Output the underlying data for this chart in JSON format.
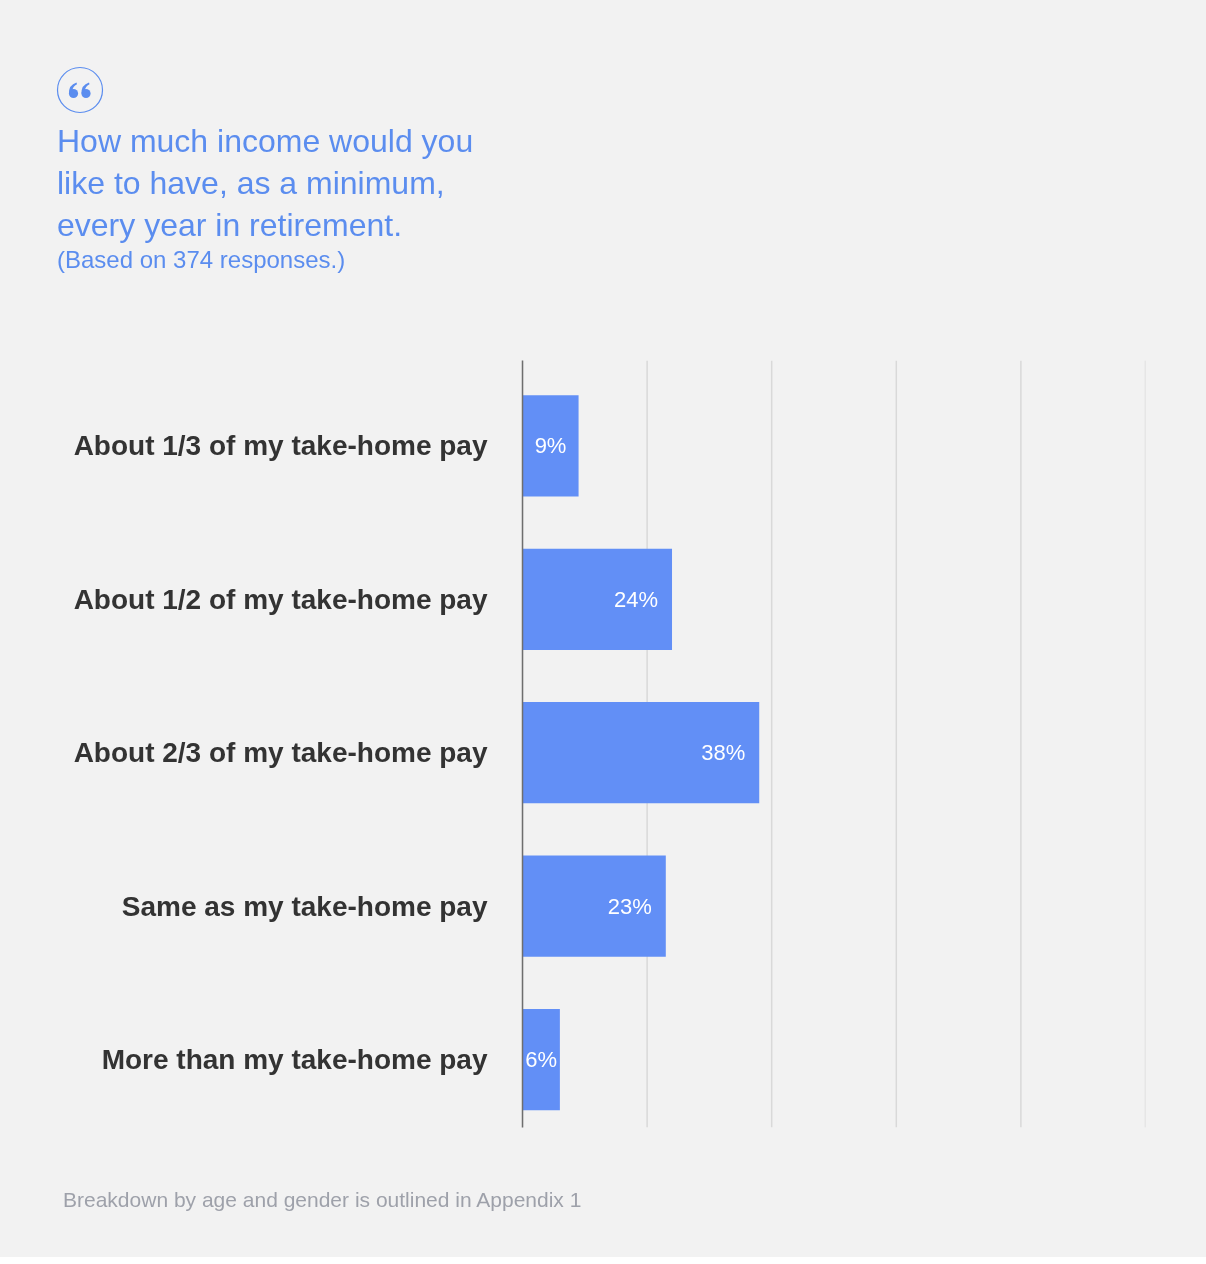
{
  "chart_data": {
    "type": "bar",
    "orientation": "horizontal",
    "title": "How much income would you like to have, as a minimum, every year in retirement.",
    "subtitle": "(Based on 374 responses.)",
    "categories": [
      "About 1/3 of my take-home pay",
      "About 1/2 of my take-home pay",
      "About 2/3 of my take-home pay",
      "Same as my take-home pay",
      "More than my take-home pay"
    ],
    "values": [
      9,
      24,
      38,
      23,
      6
    ],
    "value_labels": [
      "9%",
      "24%",
      "38%",
      "23%",
      "6%"
    ],
    "color": "#628ff6",
    "xlim": [
      0,
      100
    ],
    "xticks": [
      {
        "value": 0,
        "label": null
      },
      {
        "value": 20,
        "label": null
      },
      {
        "value": 40,
        "label": null
      },
      {
        "value": 60,
        "label": null
      },
      {
        "value": 80,
        "label": null
      },
      {
        "value": 100,
        "label": null
      }
    ],
    "grid": "x",
    "tick_labels": "y",
    "annotations": [
      "Breakdown by age and gender is outlined in Appendix 1"
    ]
  }
}
